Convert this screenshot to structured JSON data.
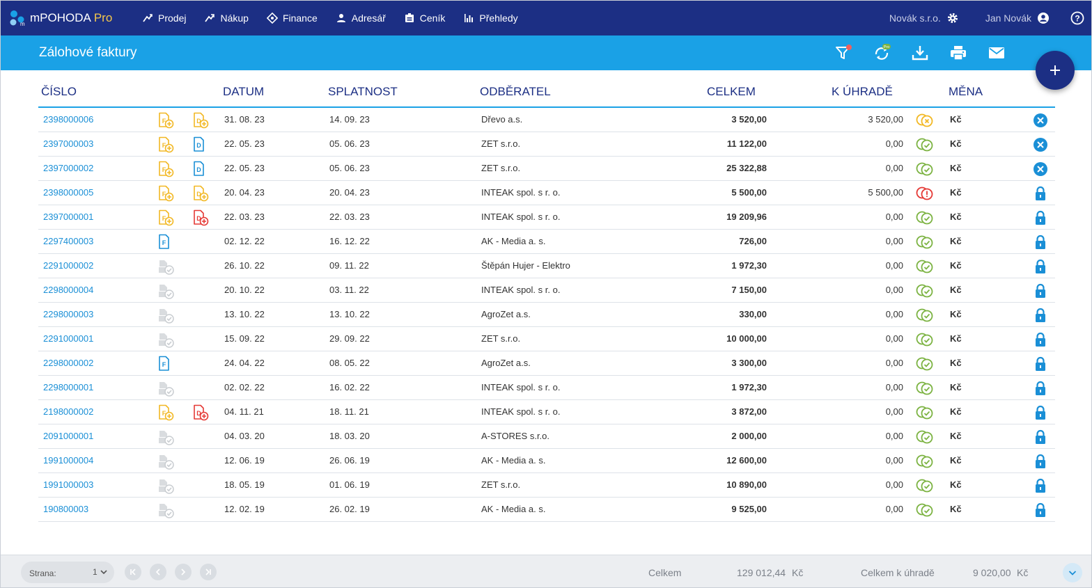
{
  "app": {
    "name": "mPOHODA",
    "edition": "Pro",
    "colors": {
      "navy": "#1c2f84",
      "blue": "#1aa1e6",
      "link": "#1a8fd6",
      "accent": "#f5c84b"
    }
  },
  "nav": {
    "items": [
      {
        "label": "Prodej",
        "icon": "sale-icon"
      },
      {
        "label": "Nákup",
        "icon": "purchase-icon"
      },
      {
        "label": "Finance",
        "icon": "finance-icon"
      },
      {
        "label": "Adresář",
        "icon": "person-icon"
      },
      {
        "label": "Ceník",
        "icon": "pricelist-icon"
      },
      {
        "label": "Přehledy",
        "icon": "chart-icon"
      }
    ],
    "company": "Novák s.r.o.",
    "user": "Jan Novák"
  },
  "page": {
    "title": "Zálohové faktury",
    "tools": [
      "filter-icon",
      "pro-sync-icon",
      "download-icon",
      "print-icon",
      "mail-icon"
    ]
  },
  "table": {
    "headers": {
      "number": "ČÍSLO",
      "date": "DATUM",
      "due": "SPLATNOST",
      "customer": "ODBĚRATEL",
      "total": "CELKEM",
      "topay": "K ÚHRADĚ",
      "currency": "MĚNA"
    },
    "rows": [
      {
        "number": "2398000006",
        "ic1": "f-yellow",
        "ic2": "d-yellow",
        "date": "31. 08. 23",
        "due": "14. 09. 23",
        "customer": "Dřevo a.s.",
        "total": "3 520,00",
        "topay": "3 520,00",
        "status": "unpaid",
        "currency": "Kč",
        "action": "cancel"
      },
      {
        "number": "2397000003",
        "ic1": "f-yellow",
        "ic2": "d-blue",
        "date": "22. 05. 23",
        "due": "05. 06. 23",
        "customer": "ZET s.r.o.",
        "total": "11 122,00",
        "topay": "0,00",
        "status": "paid",
        "currency": "Kč",
        "action": "cancel"
      },
      {
        "number": "2397000002",
        "ic1": "f-yellow",
        "ic2": "d-blue",
        "date": "22. 05. 23",
        "due": "05. 06. 23",
        "customer": "ZET s.r.o.",
        "total": "25 322,88",
        "topay": "0,00",
        "status": "paid",
        "currency": "Kč",
        "action": "cancel"
      },
      {
        "number": "2398000005",
        "ic1": "f-yellow",
        "ic2": "d-yellow",
        "date": "20. 04. 23",
        "due": "20. 04. 23",
        "customer": "INTEAK spol. s r. o.",
        "total": "5 500,00",
        "topay": "5 500,00",
        "status": "overdue",
        "currency": "Kč",
        "action": "lock"
      },
      {
        "number": "2397000001",
        "ic1": "f-yellow",
        "ic2": "d-red",
        "date": "22. 03. 23",
        "due": "22. 03. 23",
        "customer": "INTEAK spol. s r. o.",
        "total": "19 209,96",
        "topay": "0,00",
        "status": "paid",
        "currency": "Kč",
        "action": "lock"
      },
      {
        "number": "2297400003",
        "ic1": "f-blue",
        "ic2": "",
        "date": "02. 12. 22",
        "due": "16. 12. 22",
        "customer": "AK - Media a. s.",
        "total": "726,00",
        "topay": "0,00",
        "status": "paid",
        "currency": "Kč",
        "action": "lock"
      },
      {
        "number": "2291000002",
        "ic1": "gray",
        "ic2": "",
        "date": "26. 10. 22",
        "due": "09. 11. 22",
        "customer": "Štěpán Hujer - Elektro",
        "total": "1 972,30",
        "topay": "0,00",
        "status": "paid",
        "currency": "Kč",
        "action": "lock"
      },
      {
        "number": "2298000004",
        "ic1": "gray",
        "ic2": "",
        "date": "20. 10. 22",
        "due": "03. 11. 22",
        "customer": "INTEAK spol. s r. o.",
        "total": "7 150,00",
        "topay": "0,00",
        "status": "paid",
        "currency": "Kč",
        "action": "lock"
      },
      {
        "number": "2298000003",
        "ic1": "gray",
        "ic2": "",
        "date": "13. 10. 22",
        "due": "13. 10. 22",
        "customer": "AgroZet a.s.",
        "total": "330,00",
        "topay": "0,00",
        "status": "paid",
        "currency": "Kč",
        "action": "lock"
      },
      {
        "number": "2291000001",
        "ic1": "gray",
        "ic2": "",
        "date": "15. 09. 22",
        "due": "29. 09. 22",
        "customer": "ZET s.r.o.",
        "total": "10 000,00",
        "topay": "0,00",
        "status": "paid",
        "currency": "Kč",
        "action": "lock"
      },
      {
        "number": "2298000002",
        "ic1": "f-blue",
        "ic2": "",
        "date": "24. 04. 22",
        "due": "08. 05. 22",
        "customer": "AgroZet a.s.",
        "total": "3 300,00",
        "topay": "0,00",
        "status": "paid",
        "currency": "Kč",
        "action": "lock"
      },
      {
        "number": "2298000001",
        "ic1": "gray",
        "ic2": "",
        "date": "02. 02. 22",
        "due": "16. 02. 22",
        "customer": "INTEAK spol. s r. o.",
        "total": "1 972,30",
        "topay": "0,00",
        "status": "paid",
        "currency": "Kč",
        "action": "lock"
      },
      {
        "number": "2198000002",
        "ic1": "f-yellow",
        "ic2": "d-red",
        "date": "04. 11. 21",
        "due": "18. 11. 21",
        "customer": "INTEAK spol. s r. o.",
        "total": "3 872,00",
        "topay": "0,00",
        "status": "paid",
        "currency": "Kč",
        "action": "lock"
      },
      {
        "number": "2091000001",
        "ic1": "gray",
        "ic2": "",
        "date": "04. 03. 20",
        "due": "18. 03. 20",
        "customer": "A-STORES s.r.o.",
        "total": "2 000,00",
        "topay": "0,00",
        "status": "paid",
        "currency": "Kč",
        "action": "lock"
      },
      {
        "number": "1991000004",
        "ic1": "gray",
        "ic2": "",
        "date": "12. 06. 19",
        "due": "26. 06. 19",
        "customer": "AK - Media a. s.",
        "total": "12 600,00",
        "topay": "0,00",
        "status": "paid",
        "currency": "Kč",
        "action": "lock"
      },
      {
        "number": "1991000003",
        "ic1": "gray",
        "ic2": "",
        "date": "18. 05. 19",
        "due": "01. 06. 19",
        "customer": "ZET s.r.o.",
        "total": "10 890,00",
        "topay": "0,00",
        "status": "paid",
        "currency": "Kč",
        "action": "lock"
      },
      {
        "number": "190800003",
        "ic1": "gray",
        "ic2": "",
        "date": "12. 02. 19",
        "due": "26. 02. 19",
        "customer": "AK - Media a. s.",
        "total": "9 525,00",
        "topay": "0,00",
        "status": "paid",
        "currency": "Kč",
        "action": "lock"
      }
    ]
  },
  "footer": {
    "page_label": "Strana:",
    "page_value": "1",
    "total_label": "Celkem",
    "total_value": "129 012,44",
    "total_currency": "Kč",
    "topay_label": "Celkem k úhradě",
    "topay_value": "9 020,00",
    "topay_currency": "Kč"
  }
}
